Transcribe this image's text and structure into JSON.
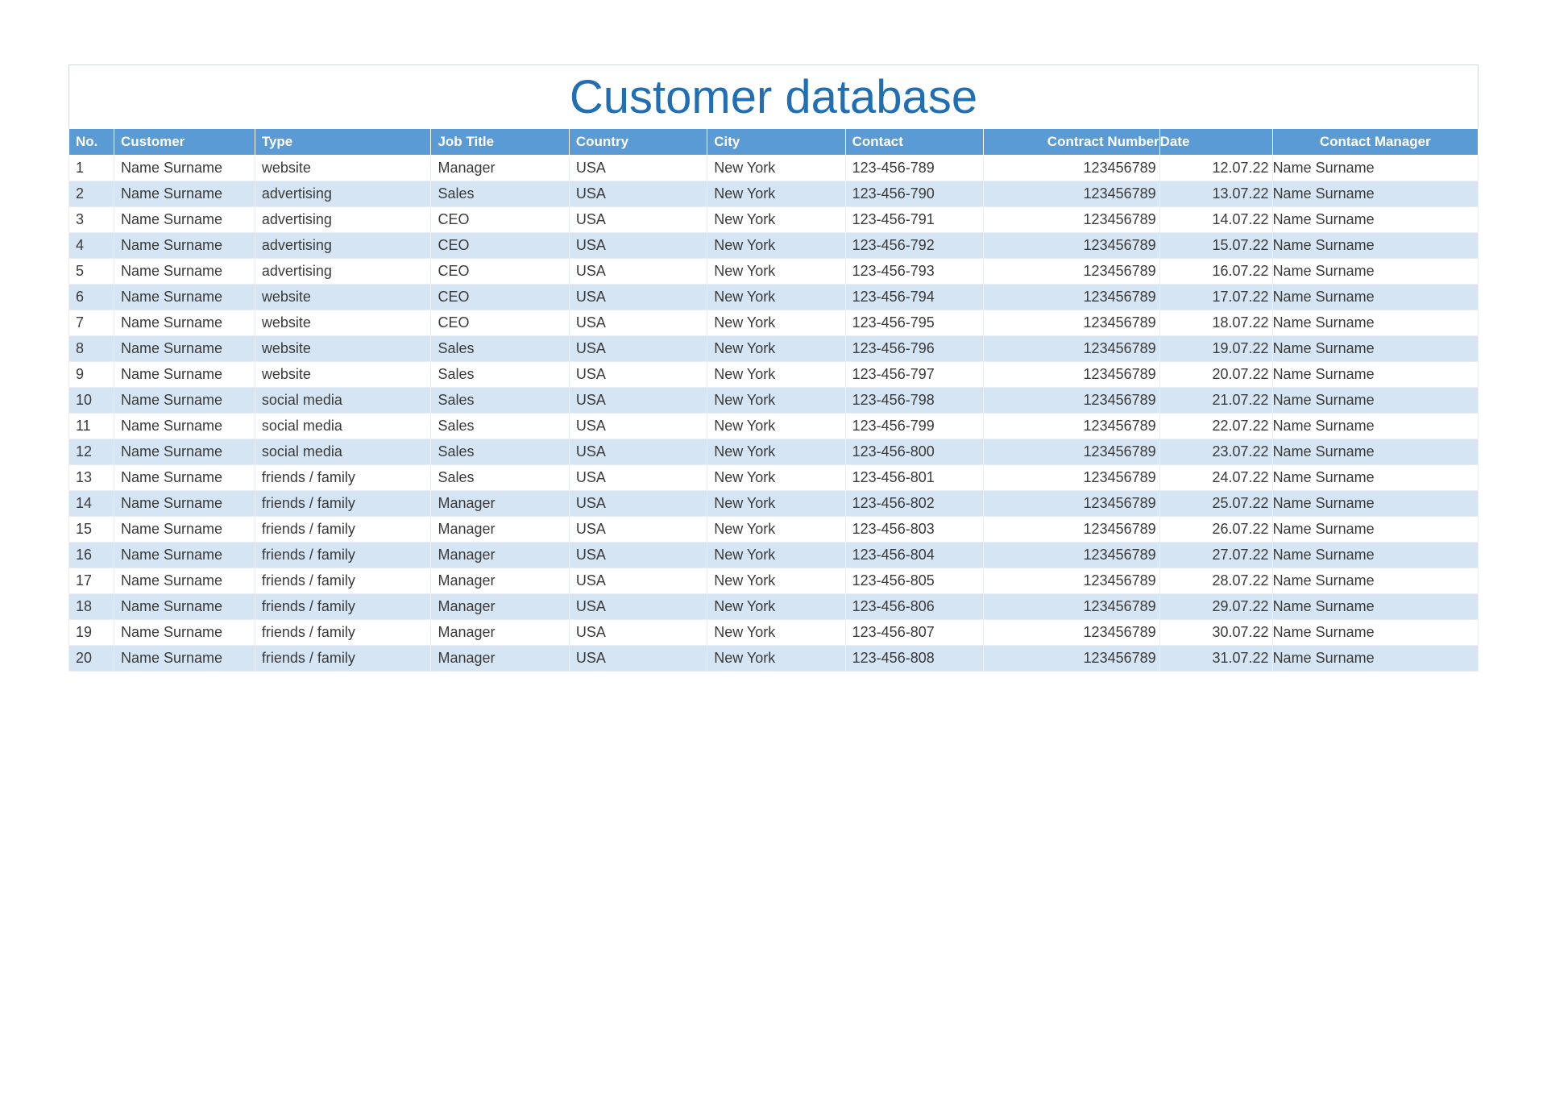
{
  "title": "Customer database",
  "colors": {
    "title": "#1f6fb2",
    "header_bg": "#5b9bd5",
    "header_fg": "#ffffff",
    "row_odd_bg": "#ffffff",
    "row_even_bg": "#d6e5f3",
    "border": "#d0d7de"
  },
  "table": {
    "columns": [
      {
        "key": "no",
        "label": "No.",
        "align": "left"
      },
      {
        "key": "customer",
        "label": "Customer",
        "align": "left"
      },
      {
        "key": "type",
        "label": "Type",
        "align": "left"
      },
      {
        "key": "job",
        "label": "Job Title",
        "align": "left"
      },
      {
        "key": "country",
        "label": "Country",
        "align": "left"
      },
      {
        "key": "city",
        "label": "City",
        "align": "left"
      },
      {
        "key": "contact",
        "label": "Contact",
        "align": "left"
      },
      {
        "key": "contract",
        "label": "Contract Number",
        "align": "right"
      },
      {
        "key": "date",
        "label": "Date",
        "align": "right"
      },
      {
        "key": "manager",
        "label": "Contact Manager",
        "align": "left"
      }
    ],
    "rows": [
      {
        "no": "1",
        "customer": "Name Surname",
        "type": "website",
        "job": "Manager",
        "country": "USA",
        "city": "New York",
        "contact": "123-456-789",
        "contract": "123456789",
        "date": "12.07.22",
        "manager": "Name Surname"
      },
      {
        "no": "2",
        "customer": "Name Surname",
        "type": "advertising",
        "job": "Sales",
        "country": "USA",
        "city": "New York",
        "contact": "123-456-790",
        "contract": "123456789",
        "date": "13.07.22",
        "manager": "Name Surname"
      },
      {
        "no": "3",
        "customer": "Name Surname",
        "type": "advertising",
        "job": "CEO",
        "country": "USA",
        "city": "New York",
        "contact": "123-456-791",
        "contract": "123456789",
        "date": "14.07.22",
        "manager": "Name Surname"
      },
      {
        "no": "4",
        "customer": "Name Surname",
        "type": "advertising",
        "job": "CEO",
        "country": "USA",
        "city": "New York",
        "contact": "123-456-792",
        "contract": "123456789",
        "date": "15.07.22",
        "manager": "Name Surname"
      },
      {
        "no": "5",
        "customer": "Name Surname",
        "type": "advertising",
        "job": "CEO",
        "country": "USA",
        "city": "New York",
        "contact": "123-456-793",
        "contract": "123456789",
        "date": "16.07.22",
        "manager": "Name Surname"
      },
      {
        "no": "6",
        "customer": "Name Surname",
        "type": "website",
        "job": "CEO",
        "country": "USA",
        "city": "New York",
        "contact": "123-456-794",
        "contract": "123456789",
        "date": "17.07.22",
        "manager": "Name Surname"
      },
      {
        "no": "7",
        "customer": "Name Surname",
        "type": "website",
        "job": "CEO",
        "country": "USA",
        "city": "New York",
        "contact": "123-456-795",
        "contract": "123456789",
        "date": "18.07.22",
        "manager": "Name Surname"
      },
      {
        "no": "8",
        "customer": "Name Surname",
        "type": "website",
        "job": "Sales",
        "country": "USA",
        "city": "New York",
        "contact": "123-456-796",
        "contract": "123456789",
        "date": "19.07.22",
        "manager": "Name Surname"
      },
      {
        "no": "9",
        "customer": "Name Surname",
        "type": "website",
        "job": "Sales",
        "country": "USA",
        "city": "New York",
        "contact": "123-456-797",
        "contract": "123456789",
        "date": "20.07.22",
        "manager": "Name Surname"
      },
      {
        "no": "10",
        "customer": "Name Surname",
        "type": "social media",
        "job": "Sales",
        "country": "USA",
        "city": "New York",
        "contact": "123-456-798",
        "contract": "123456789",
        "date": "21.07.22",
        "manager": "Name Surname"
      },
      {
        "no": "11",
        "customer": "Name Surname",
        "type": "social media",
        "job": "Sales",
        "country": "USA",
        "city": "New York",
        "contact": "123-456-799",
        "contract": "123456789",
        "date": "22.07.22",
        "manager": "Name Surname"
      },
      {
        "no": "12",
        "customer": "Name Surname",
        "type": "social media",
        "job": "Sales",
        "country": "USA",
        "city": "New York",
        "contact": "123-456-800",
        "contract": "123456789",
        "date": "23.07.22",
        "manager": "Name Surname"
      },
      {
        "no": "13",
        "customer": "Name Surname",
        "type": "friends / family",
        "job": "Sales",
        "country": "USA",
        "city": "New York",
        "contact": "123-456-801",
        "contract": "123456789",
        "date": "24.07.22",
        "manager": "Name Surname"
      },
      {
        "no": "14",
        "customer": "Name Surname",
        "type": "friends / family",
        "job": "Manager",
        "country": "USA",
        "city": "New York",
        "contact": "123-456-802",
        "contract": "123456789",
        "date": "25.07.22",
        "manager": "Name Surname"
      },
      {
        "no": "15",
        "customer": "Name Surname",
        "type": "friends / family",
        "job": "Manager",
        "country": "USA",
        "city": "New York",
        "contact": "123-456-803",
        "contract": "123456789",
        "date": "26.07.22",
        "manager": "Name Surname"
      },
      {
        "no": "16",
        "customer": "Name Surname",
        "type": "friends / family",
        "job": "Manager",
        "country": "USA",
        "city": "New York",
        "contact": "123-456-804",
        "contract": "123456789",
        "date": "27.07.22",
        "manager": "Name Surname"
      },
      {
        "no": "17",
        "customer": "Name Surname",
        "type": "friends / family",
        "job": "Manager",
        "country": "USA",
        "city": "New York",
        "contact": "123-456-805",
        "contract": "123456789",
        "date": "28.07.22",
        "manager": "Name Surname"
      },
      {
        "no": "18",
        "customer": "Name Surname",
        "type": "friends / family",
        "job": "Manager",
        "country": "USA",
        "city": "New York",
        "contact": "123-456-806",
        "contract": "123456789",
        "date": "29.07.22",
        "manager": "Name Surname"
      },
      {
        "no": "19",
        "customer": "Name Surname",
        "type": "friends / family",
        "job": "Manager",
        "country": "USA",
        "city": "New York",
        "contact": "123-456-807",
        "contract": "123456789",
        "date": "30.07.22",
        "manager": "Name Surname"
      },
      {
        "no": "20",
        "customer": "Name Surname",
        "type": "friends / family",
        "job": "Manager",
        "country": "USA",
        "city": "New York",
        "contact": "123-456-808",
        "contract": "123456789",
        "date": "31.07.22",
        "manager": "Name Surname"
      }
    ]
  }
}
